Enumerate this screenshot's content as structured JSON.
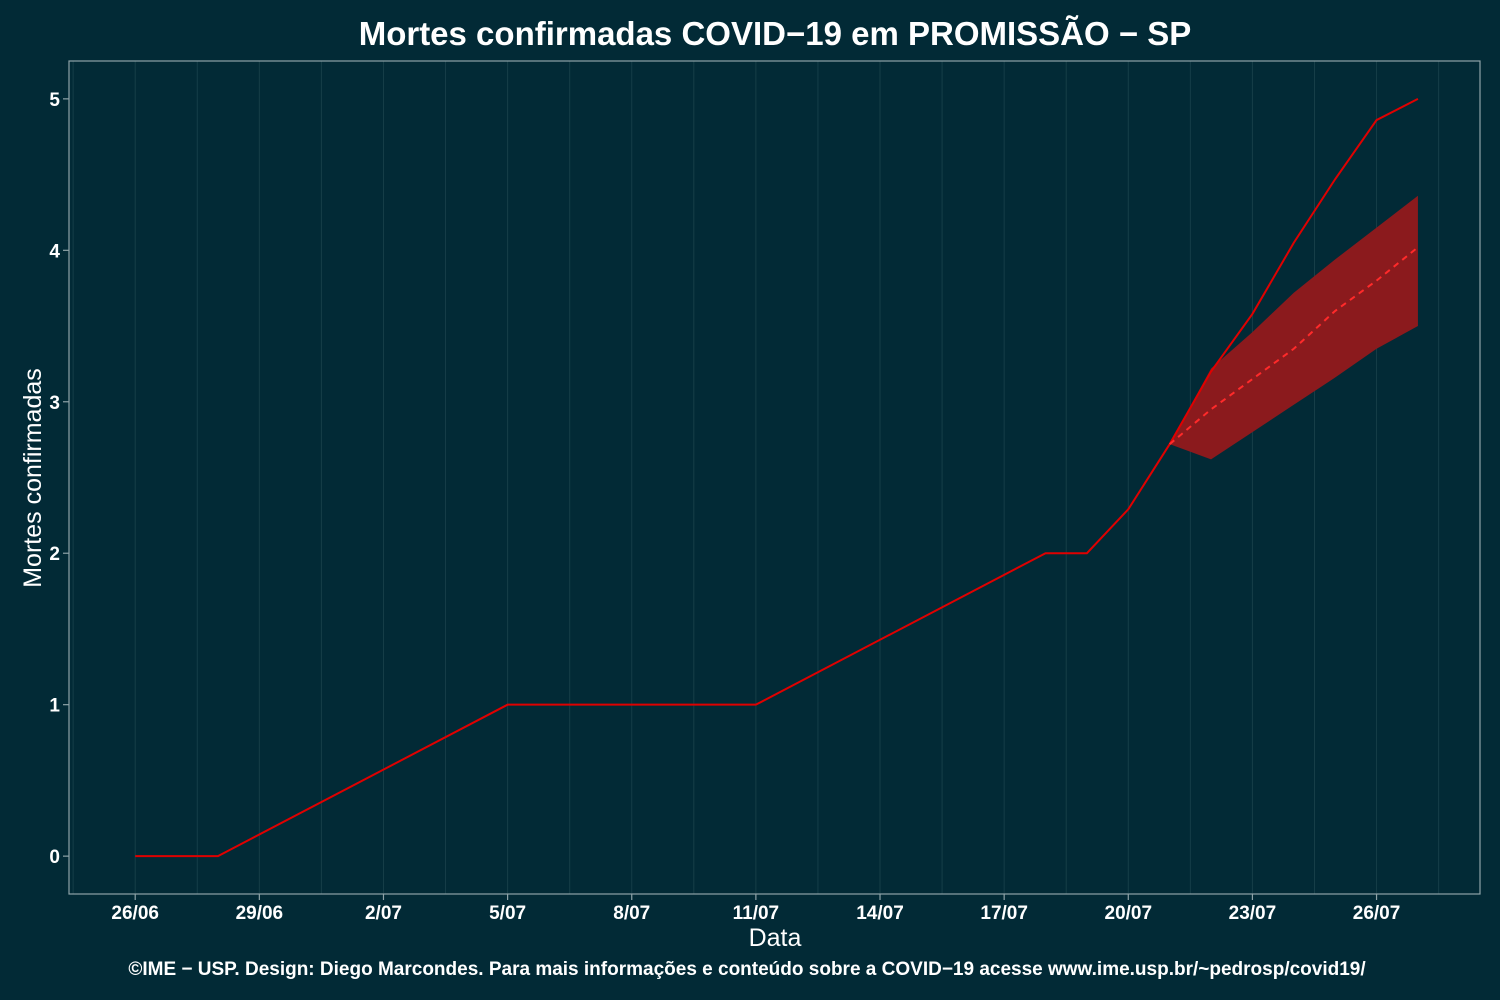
{
  "chart_data": {
    "type": "line",
    "title": "Mortes confirmadas COVID−19 em PROMISSÃO − SP",
    "xlabel": "Data",
    "ylabel": "Mortes confirmadas",
    "caption": "©IME − USP. Design: Diego Marcondes. Para mais informações e conteúdo sobre a COVID−19 acesse www.ime.usp.br/~pedrosp/covid19/",
    "x_ticks": [
      {
        "day": 26,
        "label": "26/06"
      },
      {
        "day": 29,
        "label": "29/06"
      },
      {
        "day": 32,
        "label": "2/07"
      },
      {
        "day": 35,
        "label": "5/07"
      },
      {
        "day": 38,
        "label": "8/07"
      },
      {
        "day": 41,
        "label": "11/07"
      },
      {
        "day": 44,
        "label": "14/07"
      },
      {
        "day": 47,
        "label": "17/07"
      },
      {
        "day": 50,
        "label": "20/07"
      },
      {
        "day": 53,
        "label": "23/07"
      },
      {
        "day": 56,
        "label": "26/07"
      }
    ],
    "y_ticks": [
      "0",
      "1",
      "2",
      "3",
      "4",
      "5"
    ],
    "xlim": [
      24.4,
      58.5
    ],
    "ylim": [
      -0.25,
      5.25
    ],
    "grid": true,
    "series": [
      {
        "color": "#e00000",
        "style": "solid",
        "points": [
          [
            26,
            0
          ],
          [
            28,
            0
          ],
          [
            35,
            1
          ],
          [
            41,
            1
          ],
          [
            48,
            2
          ],
          [
            49,
            2
          ],
          [
            50,
            2.29
          ],
          [
            51,
            2.72
          ],
          [
            52,
            3.2
          ],
          [
            53,
            3.58
          ],
          [
            54,
            4.05
          ],
          [
            55,
            4.47
          ],
          [
            56,
            4.86
          ],
          [
            57,
            5.0
          ]
        ]
      },
      {
        "color": "#ff2a2a",
        "style": "dashed",
        "points": [
          [
            51,
            2.72
          ],
          [
            52,
            2.95
          ],
          [
            53,
            3.15
          ],
          [
            54,
            3.35
          ],
          [
            55,
            3.6
          ],
          [
            56,
            3.8
          ],
          [
            57,
            4.02
          ]
        ]
      }
    ],
    "band": {
      "color": "#8b1a1d",
      "x": [
        51,
        52,
        53,
        54,
        55,
        56,
        57
      ],
      "upper": [
        2.72,
        3.22,
        3.46,
        3.72,
        3.94,
        4.15,
        4.36
      ],
      "lower": [
        2.72,
        2.62,
        2.8,
        2.98,
        3.16,
        3.35,
        3.5
      ]
    },
    "colors": {
      "background": "#022a36",
      "grid": "#163e48",
      "axis": "#8fa3a8"
    }
  }
}
